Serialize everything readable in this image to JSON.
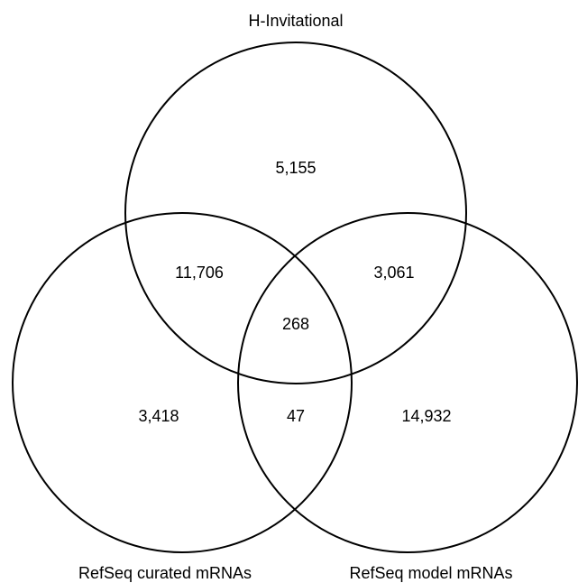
{
  "sets": [
    {
      "label": "H-Invitational"
    },
    {
      "label": "RefSeq curated mRNAs"
    },
    {
      "label": "RefSeq model mRNAs"
    }
  ],
  "regions": [
    {
      "label": "5,155"
    },
    {
      "label": "11,706"
    },
    {
      "label": "3,061"
    },
    {
      "label": "268"
    },
    {
      "label": "3,418"
    },
    {
      "label": "47"
    },
    {
      "label": "14,932"
    }
  ]
}
